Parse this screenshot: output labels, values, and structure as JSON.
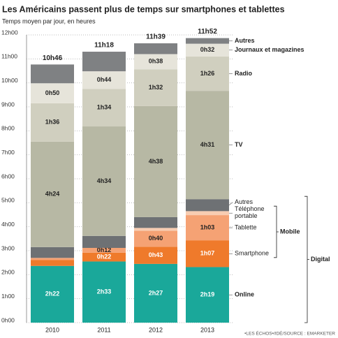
{
  "chart_data": {
    "type": "stacked_bar",
    "title": "Les Américains passent plus de temps sur smartphones et tablettes",
    "subtitle": "Temps moyen par jour, en heures",
    "source": "•LES ÉCHOS•/IDÉ/SOURCE : EMARKETER",
    "categories": [
      "2010",
      "2011",
      "2012",
      "2013"
    ],
    "series": [
      {
        "name": "Online",
        "color": "#1aa89a",
        "values": [
          142,
          153,
          147,
          139
        ],
        "value_labels": [
          "2h22",
          "2h33",
          "2h27",
          "2h19"
        ]
      },
      {
        "name": "Smartphone",
        "color": "#ef7a2b",
        "values": [
          15,
          22,
          43,
          67
        ],
        "value_labels": [
          null,
          "0h22",
          "0h43",
          "1h07"
        ]
      },
      {
        "name": "Tablette",
        "color": "#f5a274",
        "values": [
          5,
          12,
          40,
          63
        ],
        "value_labels": [
          null,
          "0h12",
          "0h40",
          "1h03"
        ]
      },
      {
        "name": "Téléphone portable",
        "color": "#f8cdb2",
        "values": [
          0,
          0,
          7,
          10
        ],
        "value_labels": [
          null,
          null,
          null,
          null
        ]
      },
      {
        "name": "Autres",
        "color": "#6e7174",
        "values": [
          27,
          30,
          27,
          30
        ],
        "value_labels": [
          null,
          null,
          null,
          null
        ]
      },
      {
        "name": "TV",
        "color": "#b7b8a4",
        "values": [
          264,
          274,
          278,
          271
        ],
        "value_labels": [
          "4h24",
          "4h34",
          "4h38",
          "4h31"
        ]
      },
      {
        "name": "Radio",
        "color": "#d0cfbf",
        "values": [
          96,
          94,
          92,
          86
        ],
        "value_labels": [
          "1h36",
          "1h34",
          "1h32",
          "1h26"
        ]
      },
      {
        "name": "Journaux et magazines",
        "color": "#e6e4da",
        "values": [
          50,
          44,
          38,
          32
        ],
        "value_labels": [
          "0h50",
          "0h44",
          "0h38",
          "0h32"
        ]
      },
      {
        "name": "Autres",
        "color": "#7f8183",
        "values": [
          47,
          49,
          27,
          14
        ],
        "value_labels": [
          null,
          null,
          null,
          null
        ]
      }
    ],
    "totals": [
      646,
      678,
      699,
      712
    ],
    "total_labels": [
      "10h46",
      "11h18",
      "11h39",
      "11h52"
    ],
    "groups": [
      {
        "name": "Mobile",
        "series": [
          1,
          2,
          3
        ]
      },
      {
        "name": "Digital",
        "series": [
          0,
          1,
          2,
          3,
          4
        ]
      }
    ],
    "ylim": [
      0,
      720
    ],
    "yticks": [
      {
        "value": 0,
        "label": "0h00"
      },
      {
        "value": 60,
        "label": "1h00"
      },
      {
        "value": 120,
        "label": "2h00"
      },
      {
        "value": 180,
        "label": "3h00"
      },
      {
        "value": 240,
        "label": "4h00"
      },
      {
        "value": 300,
        "label": "5h00"
      },
      {
        "value": 360,
        "label": "6h00"
      },
      {
        "value": 420,
        "label": "7h00"
      },
      {
        "value": 480,
        "label": "8h00"
      },
      {
        "value": 540,
        "label": "9h00"
      },
      {
        "value": 600,
        "label": "10h00"
      },
      {
        "value": 660,
        "label": "11h00"
      },
      {
        "value": 720,
        "label": "12h00"
      }
    ],
    "grid": true
  }
}
